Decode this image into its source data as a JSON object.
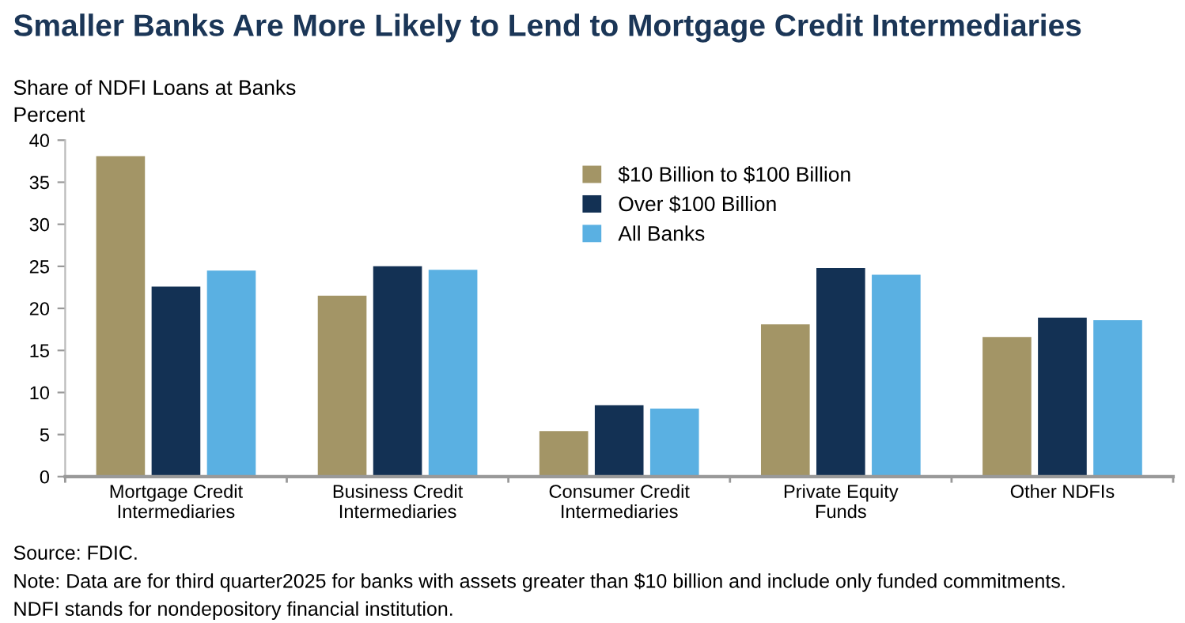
{
  "chart_data": {
    "type": "bar",
    "title": "Smaller Banks Are More Likely to Lend to Mortgage Credit Intermediaries",
    "ylabel": "Share of NDFI Loans at Banks\nPercent",
    "categories": [
      "Mortgage Credit\nIntermediaries",
      "Business Credit\nIntermediaries",
      "Consumer Credit\nIntermediaries",
      "Private Equity\nFunds",
      "Other NDFIs"
    ],
    "series": [
      {
        "name": "$10 Billion to $100 Billion",
        "color": "#a39566",
        "values": [
          38.1,
          21.5,
          5.4,
          18.1,
          16.6
        ]
      },
      {
        "name": "Over $100 Billion",
        "color": "#133154",
        "values": [
          22.6,
          25.0,
          8.5,
          24.8,
          18.9
        ]
      },
      {
        "name": "All Banks",
        "color": "#5ab0e2",
        "values": [
          24.5,
          24.6,
          8.1,
          24.0,
          18.6
        ]
      }
    ],
    "ylim": [
      0,
      40
    ],
    "yticks": [
      0,
      5,
      10,
      15,
      20,
      25,
      30,
      35,
      40
    ],
    "grid": false,
    "legend": "top",
    "annotations": [
      "Source: FDIC.",
      "Note: Data are for third quarter2025 for banks with assets greater than $10 billion and include only funded commitments.",
      "NDFI stands for nondepository financial institution."
    ]
  }
}
